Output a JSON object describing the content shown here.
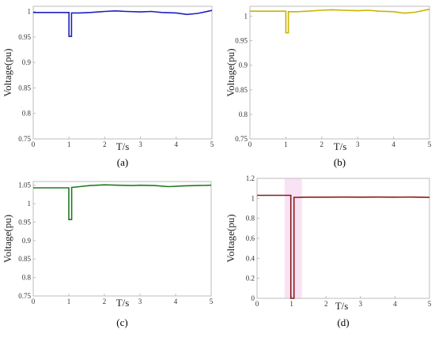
{
  "chart_data": [
    {
      "id": "a",
      "type": "line",
      "caption": "(a)",
      "xlabel": "T/s",
      "ylabel": "Voltage(pu)",
      "xlim": [
        0,
        5
      ],
      "ylim": [
        0.75,
        1.01
      ],
      "xticks": [
        "0",
        "1",
        "2",
        "3",
        "4",
        "5"
      ],
      "yticks": [
        "0.75",
        "0.8",
        "0.85",
        "0.9",
        "0.95",
        "1"
      ],
      "grid": false,
      "series": [
        {
          "color": "#1f1fbf",
          "x": [
            0,
            0.99,
            1.0,
            1.0,
            1.07,
            1.07,
            1.3,
            1.6,
            2.0,
            2.3,
            2.6,
            3.0,
            3.3,
            3.6,
            4.0,
            4.3,
            4.6,
            5.0
          ],
          "y": [
            0.998,
            0.998,
            0.998,
            0.951,
            0.951,
            0.997,
            0.997,
            0.998,
            1.0,
            1.001,
            1.0,
            0.999,
            1.0,
            0.998,
            0.997,
            0.994,
            0.996,
            1.002
          ]
        }
      ]
    },
    {
      "id": "b",
      "type": "line",
      "caption": "(b)",
      "xlabel": "T/s",
      "ylabel": "Voltage(pu)",
      "xlim": [
        0,
        5
      ],
      "ylim": [
        0.75,
        1.02
      ],
      "xticks": [
        "0",
        "1",
        "2",
        "3",
        "4",
        "5"
      ],
      "yticks": [
        "0.75",
        "0.8",
        "0.85",
        "0.9",
        "0.95",
        "1"
      ],
      "grid": false,
      "series": [
        {
          "color": "#c8b400",
          "x": [
            0,
            0.99,
            1.0,
            1.0,
            1.07,
            1.07,
            1.3,
            1.6,
            2.0,
            2.3,
            2.6,
            3.0,
            3.3,
            3.6,
            4.0,
            4.3,
            4.6,
            5.0
          ],
          "y": [
            1.01,
            1.01,
            1.01,
            0.966,
            0.966,
            1.009,
            1.009,
            1.01,
            1.012,
            1.013,
            1.012,
            1.011,
            1.012,
            1.01,
            1.009,
            1.006,
            1.008,
            1.014
          ]
        }
      ]
    },
    {
      "id": "c",
      "type": "line",
      "caption": "(c)",
      "xlabel": "T/s",
      "ylabel": "Voltage(pu)",
      "xlim": [
        0,
        5
      ],
      "ylim": [
        0.75,
        1.06
      ],
      "xticks": [
        "0",
        "1",
        "2",
        "3",
        "4",
        "5"
      ],
      "yticks": [
        "0.75",
        "0.8",
        "0.85",
        "0.9",
        "0.95",
        "1",
        "1.05"
      ],
      "grid": false,
      "series": [
        {
          "color": "#1f7a1f",
          "x": [
            0,
            0.99,
            1.0,
            1.0,
            1.08,
            1.08,
            1.3,
            1.6,
            2.0,
            2.4,
            2.8,
            3.0,
            3.4,
            3.8,
            4.2,
            4.6,
            5.0
          ],
          "y": [
            1.043,
            1.043,
            1.043,
            0.957,
            0.957,
            1.044,
            1.046,
            1.049,
            1.051,
            1.05,
            1.049,
            1.05,
            1.049,
            1.046,
            1.048,
            1.049,
            1.05
          ]
        }
      ]
    },
    {
      "id": "d",
      "type": "line",
      "caption": "(d)",
      "xlabel": "T/s",
      "ylabel": "Voltage(pu)",
      "xlim": [
        0,
        5
      ],
      "ylim": [
        0,
        1.2
      ],
      "xticks": [
        "0",
        "1",
        "2",
        "3",
        "4",
        "5"
      ],
      "yticks": [
        "0",
        "0.2",
        "0.4",
        "0.6",
        "0.8",
        "1",
        "1.2"
      ],
      "grid": false,
      "shading": {
        "color": "#f7d6f0",
        "x": [
          0.8,
          1.3
        ]
      },
      "series": [
        {
          "color": "#8b1a1a",
          "x": [
            0,
            0.98,
            0.98,
            1.07,
            1.07,
            1.5,
            2.0,
            2.5,
            3.0,
            3.5,
            4.0,
            4.5,
            5.0
          ],
          "y": [
            1.03,
            1.03,
            0,
            0,
            1.01,
            1.012,
            1.012,
            1.013,
            1.012,
            1.013,
            1.012,
            1.013,
            1.01
          ]
        }
      ]
    }
  ]
}
